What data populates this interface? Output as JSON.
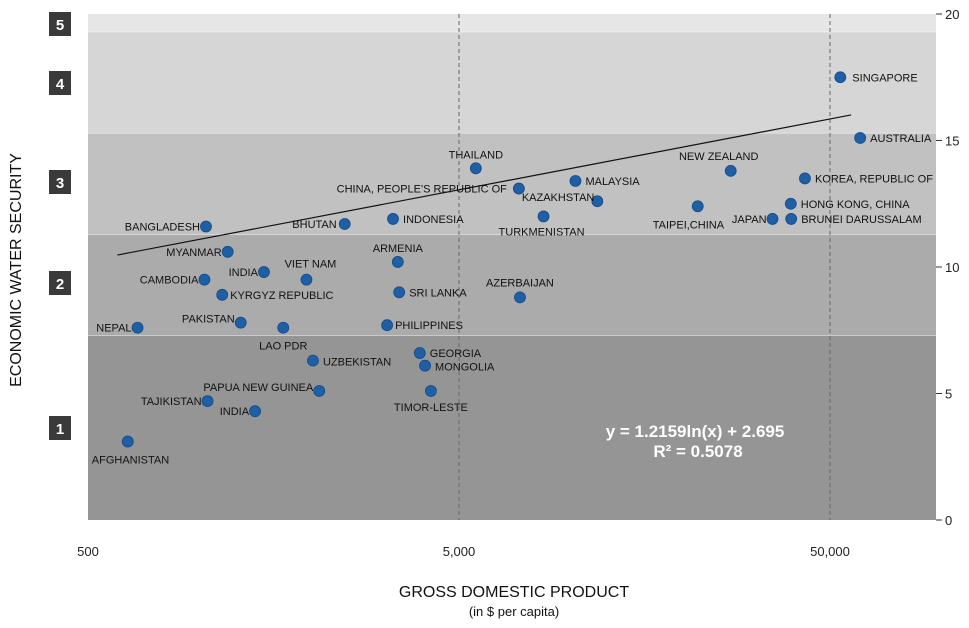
{
  "chart_data": {
    "type": "scatter",
    "xlabel": "GROSS DOMESTIC PRODUCT",
    "xlabel_sub": "(in $ per capita)",
    "ylabel": "ECONOMIC WATER SECURITY",
    "x_scale": "log",
    "xlim": [
      500,
      95000
    ],
    "ylim": [
      0,
      20
    ],
    "x_ticks": [
      500,
      5000,
      50000
    ],
    "x_tick_labels": [
      "500",
      "5,000",
      "50,000"
    ],
    "y_ticks": [
      0,
      5,
      10,
      15,
      20
    ],
    "y_tick_labels": [
      "0",
      "5",
      "10",
      "15",
      "20"
    ],
    "grid": "vertical dashed lines at 5,000 and 50,000",
    "bands": [
      {
        "label": "1",
        "y_from": 0,
        "y_to": 7.3,
        "color": "#959595"
      },
      {
        "label": "2",
        "y_from": 7.3,
        "y_to": 11.3,
        "color": "#ababab"
      },
      {
        "label": "3",
        "y_from": 11.3,
        "y_to": 15.3,
        "color": "#c1c1c1"
      },
      {
        "label": "4",
        "y_from": 15.3,
        "y_to": 19.3,
        "color": "#d6d6d6"
      },
      {
        "label": "5",
        "y_from": 19.3,
        "y_to": 20,
        "color": "#e6e6e6"
      }
    ],
    "points": [
      {
        "label": "AFGHANISTAN",
        "x": 640,
        "y": 3.1
      },
      {
        "label": "NEPAL",
        "x": 680,
        "y": 7.6
      },
      {
        "label": "TAJIKISTAN",
        "x": 1050,
        "y": 4.7
      },
      {
        "label": "INDIA",
        "x": 1410,
        "y": 4.3
      },
      {
        "label": "PAPUA NEW GUINEA",
        "x": 2100,
        "y": 5.1
      },
      {
        "label": "UZBEKISTAN",
        "x": 2020,
        "y": 6.3
      },
      {
        "label": "LAO PDR",
        "x": 1680,
        "y": 7.6
      },
      {
        "label": "PAKISTAN",
        "x": 1290,
        "y": 7.8
      },
      {
        "label": "PHILIPPINES",
        "x": 3200,
        "y": 7.7
      },
      {
        "label": "KYRGYZ REPUBLIC",
        "x": 1150,
        "y": 8.9
      },
      {
        "label": "CAMBODIA",
        "x": 1030,
        "y": 9.5
      },
      {
        "label": "INDIA",
        "x": 1490,
        "y": 9.8
      },
      {
        "label": "VIET NAM",
        "x": 1940,
        "y": 9.5
      },
      {
        "label": "MYANMAR",
        "x": 1190,
        "y": 10.6
      },
      {
        "label": "BANGLADESH",
        "x": 1040,
        "y": 11.6
      },
      {
        "label": "BHUTAN",
        "x": 2460,
        "y": 11.7
      },
      {
        "label": "INDONESIA",
        "x": 3320,
        "y": 11.9
      },
      {
        "label": "ARMENIA",
        "x": 3420,
        "y": 10.2
      },
      {
        "label": "SRI LANKA",
        "x": 3450,
        "y": 9.0
      },
      {
        "label": "GEORGIA",
        "x": 3920,
        "y": 6.6
      },
      {
        "label": "MONGOLIA",
        "x": 4050,
        "y": 6.1
      },
      {
        "label": "TIMOR-LESTE",
        "x": 4200,
        "y": 5.1
      },
      {
        "label": "AZERBAIJAN",
        "x": 7300,
        "y": 8.8
      },
      {
        "label": "THAILAND",
        "x": 5550,
        "y": 13.9
      },
      {
        "label": "CHINA, PEOPLE'S REPUBLIC OF",
        "x": 7250,
        "y": 13.1
      },
      {
        "label": "MALAYSIA",
        "x": 10300,
        "y": 13.4
      },
      {
        "label": "KAZAKHSTAN",
        "x": 11800,
        "y": 12.6
      },
      {
        "label": "TURKMENISTAN",
        "x": 8450,
        "y": 12.0
      },
      {
        "label": "TAIPEI,CHINA",
        "x": 22000,
        "y": 12.4
      },
      {
        "label": "NEW ZEALAND",
        "x": 27000,
        "y": 13.8
      },
      {
        "label": "JAPAN",
        "x": 35000,
        "y": 11.9
      },
      {
        "label": "BRUNEI DARUSSALAM",
        "x": 39300,
        "y": 11.9
      },
      {
        "label": "HONG KONG, CHINA",
        "x": 39200,
        "y": 12.5
      },
      {
        "label": "KOREA, REPUBLIC OF",
        "x": 42800,
        "y": 13.5
      },
      {
        "label": "SINGAPORE",
        "x": 53300,
        "y": 17.5
      },
      {
        "label": "AUSTRALIA",
        "x": 60300,
        "y": 15.1
      }
    ],
    "trendline": {
      "type": "logarithmic",
      "a": 1.2159,
      "b": 2.695
    },
    "annotations": [
      "y = 1.2159ln(x) + 2.695",
      "R² = 0.5078"
    ]
  }
}
